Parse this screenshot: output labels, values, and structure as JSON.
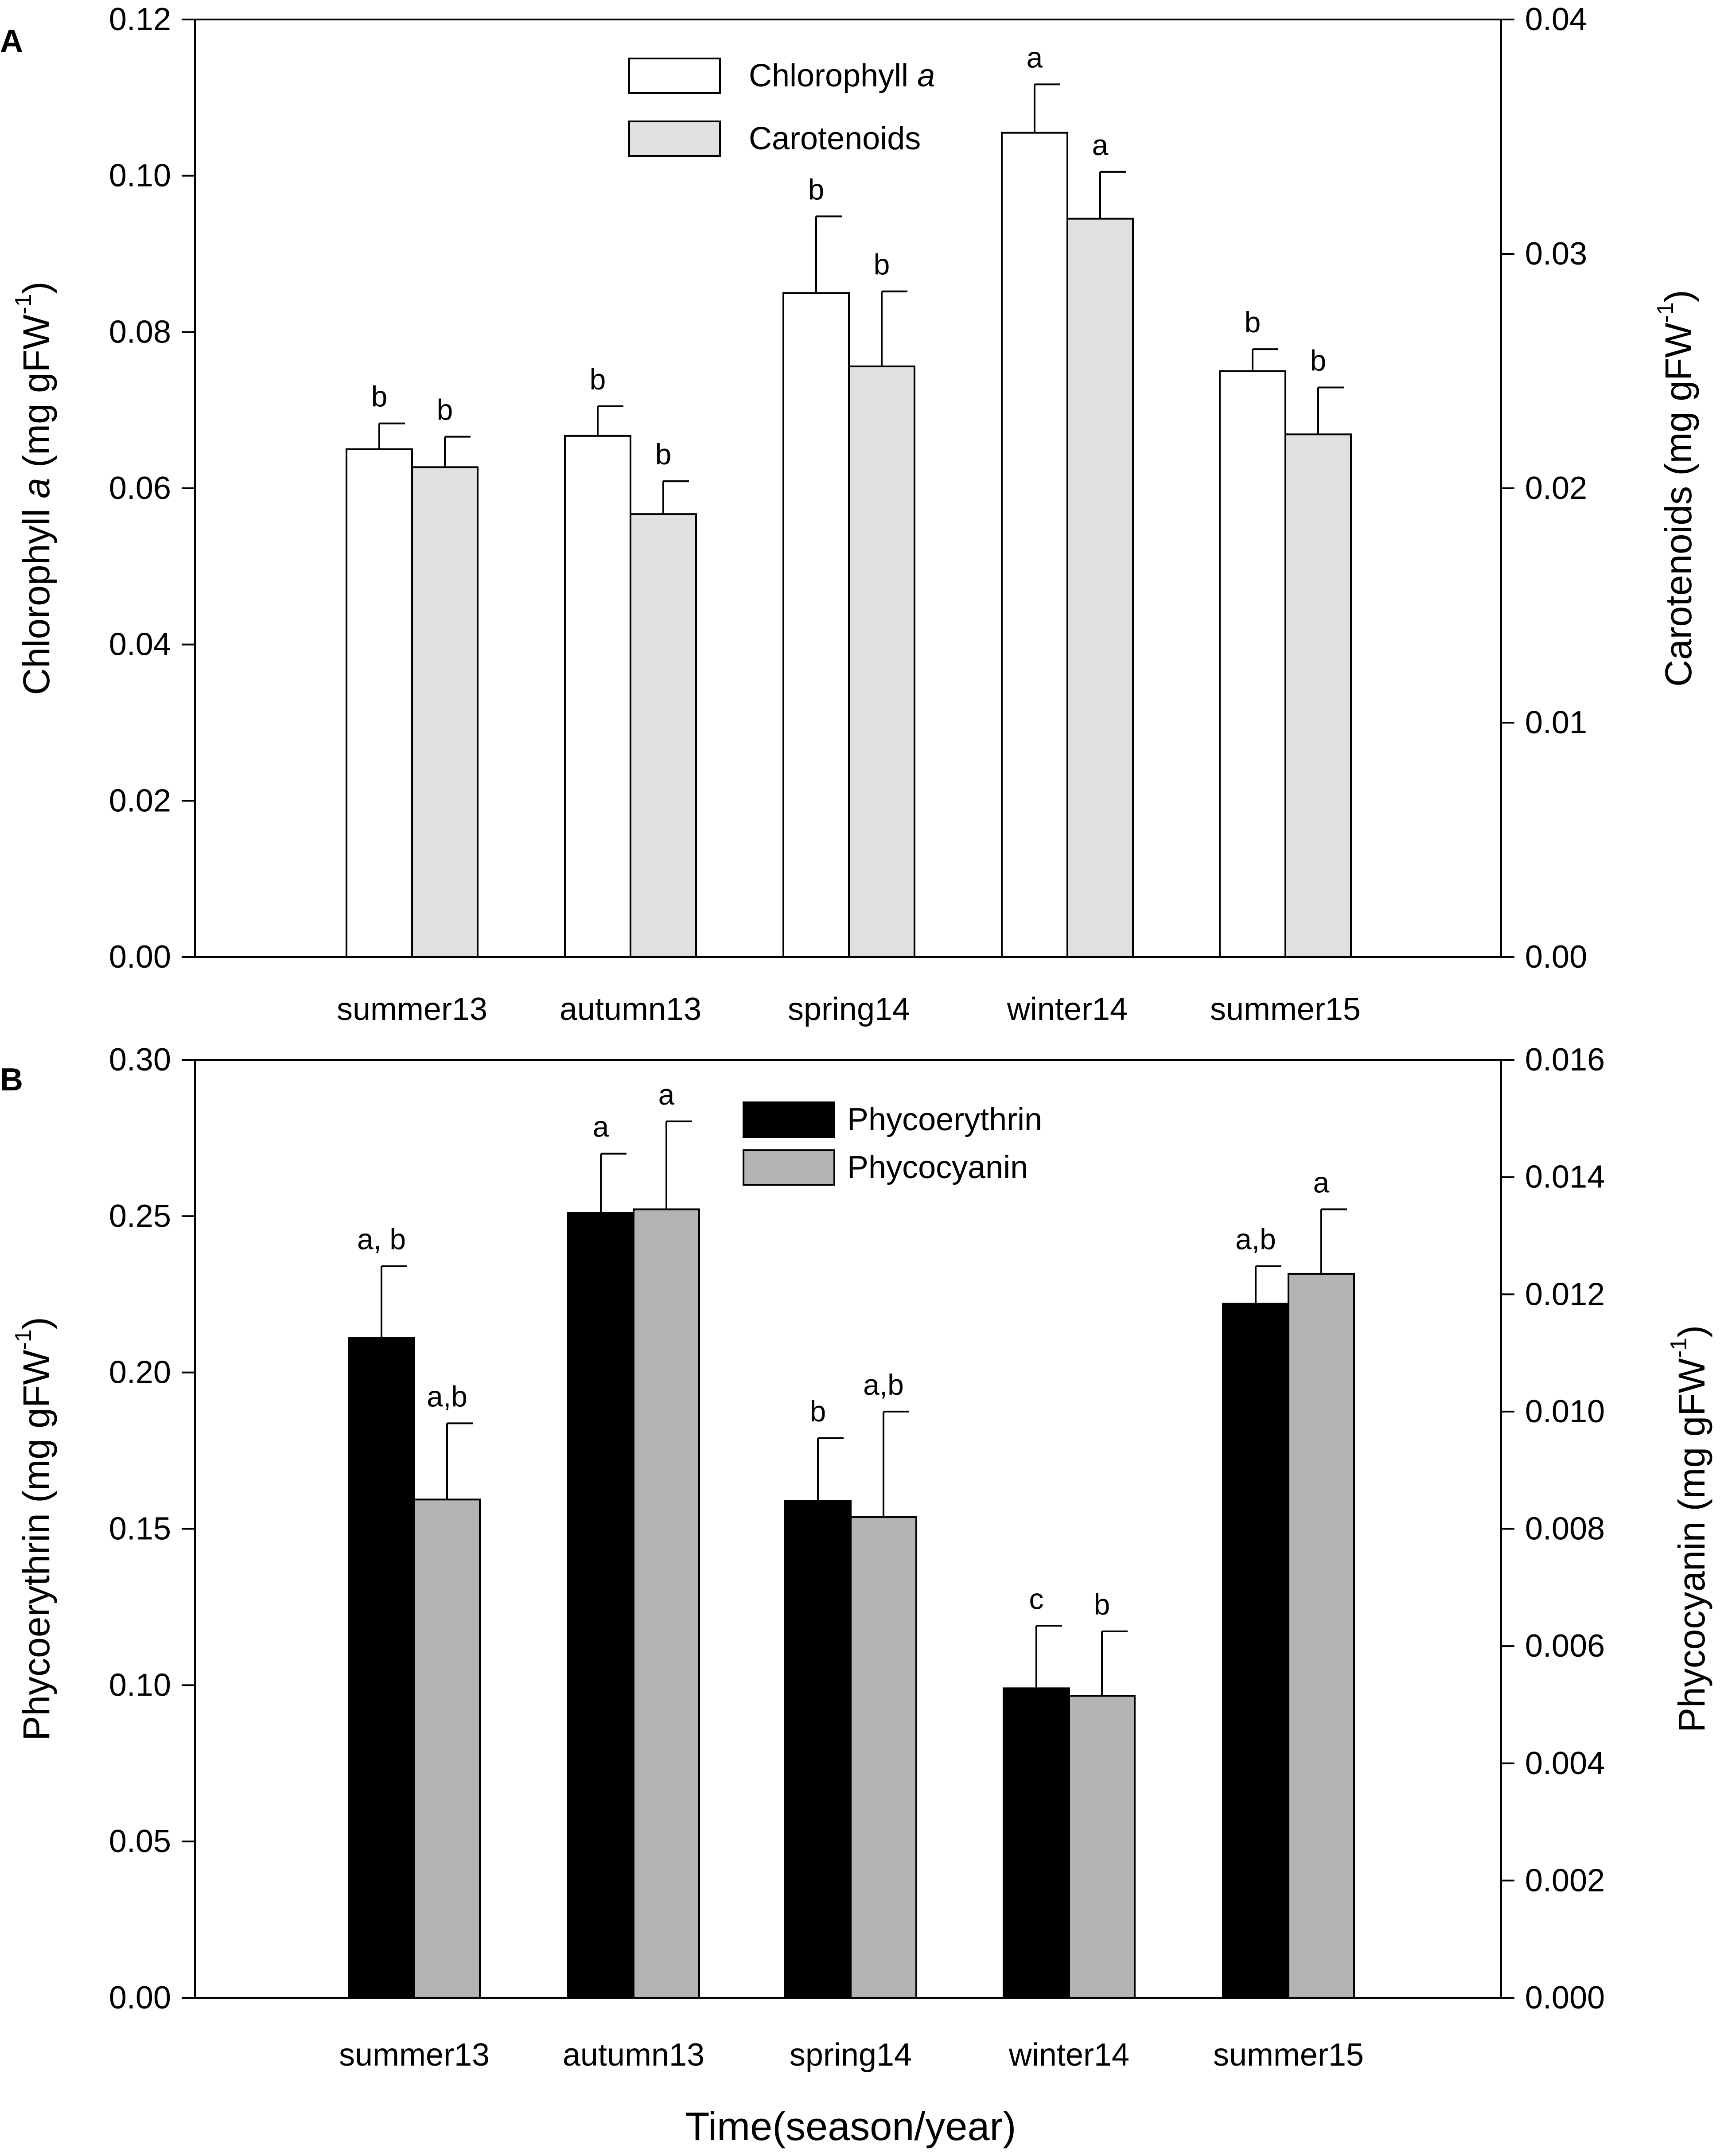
{
  "figure": {
    "shared_xlabel": "Time(season/year)"
  },
  "chart_data": [
    {
      "type": "bar",
      "panel": "A",
      "categories": [
        "summer13",
        "autumn13",
        "spring14",
        "winter14",
        "summer15"
      ],
      "legend_position": "top-center",
      "left_axis": {
        "label": "Chlorophyll a (mg gFW⁻¹)",
        "label_parts": {
          "pre": "Chlorophyll ",
          "italic": "a",
          "post": " (mg gFW",
          "sup": "-1",
          "close": ")"
        },
        "ylim": [
          0,
          0.12
        ],
        "ticks": [
          "0.00",
          "0.02",
          "0.04",
          "0.06",
          "0.08",
          "0.10",
          "0.12"
        ]
      },
      "right_axis": {
        "label": "Carotenoids (mg gFW⁻¹)",
        "label_parts": {
          "pre": "Carotenoids",
          "post": " (mg gFW",
          "sup": "-1",
          "close": ")"
        },
        "ylim": [
          0,
          0.04
        ],
        "ticks": [
          "0.00",
          "0.01",
          "0.02",
          "0.03",
          "0.04"
        ]
      },
      "series": [
        {
          "name": "Chlorophyll a",
          "legend_parts": {
            "pre": "Chlorophyll ",
            "italic": "a"
          },
          "axis": "left",
          "color": "#ffffff",
          "values": [
            0.065,
            0.0667,
            0.085,
            0.1055,
            0.075
          ],
          "errors": [
            0.0033,
            0.0038,
            0.0098,
            0.0062,
            0.0028
          ],
          "letters": [
            "b",
            "b",
            "b",
            "a",
            "b"
          ]
        },
        {
          "name": "Carotenoids",
          "legend_parts": {
            "pre": "Carotenoids"
          },
          "axis": "right",
          "color": "#e0e0e0",
          "values": [
            0.0209,
            0.0189,
            0.0252,
            0.0315,
            0.0223
          ],
          "errors": [
            0.0013,
            0.0014,
            0.0032,
            0.002,
            0.002
          ],
          "letters": [
            "b",
            "b",
            "b",
            "a",
            "b"
          ]
        }
      ]
    },
    {
      "type": "bar",
      "panel": "B",
      "categories": [
        "summer13",
        "autumn13",
        "spring14",
        "winter14",
        "summer15"
      ],
      "legend_position": "top-center",
      "left_axis": {
        "label": "Phycoerythrin (mg gFW⁻¹)",
        "label_parts": {
          "pre": "Phycoerythrin",
          "post": " (mg gFW",
          "sup": "-1",
          "close": ")"
        },
        "ylim": [
          0,
          0.3
        ],
        "ticks": [
          "0.00",
          "0.05",
          "0.10",
          "0.15",
          "0.20",
          "0.25",
          "0.30"
        ]
      },
      "right_axis": {
        "label": "Phycocyanin (mg gFW⁻¹)",
        "label_parts": {
          "pre": "Phycocyanin",
          "post": " (mg gFW",
          "sup": "-1",
          "close": ")"
        },
        "ylim": [
          0,
          0.016
        ],
        "ticks": [
          "0.000",
          "0.002",
          "0.004",
          "0.006",
          "0.008",
          "0.010",
          "0.012",
          "0.014",
          "0.016"
        ]
      },
      "series": [
        {
          "name": "Phycoerythrin",
          "legend_parts": {
            "pre": "Phycoerythrin"
          },
          "axis": "left",
          "color": "#000000",
          "values": [
            0.211,
            0.251,
            0.159,
            0.099,
            0.222
          ],
          "errors": [
            0.023,
            0.019,
            0.02,
            0.02,
            0.012
          ],
          "letters": [
            "a, b",
            "a",
            "b",
            "c",
            "a,b"
          ]
        },
        {
          "name": "Phycocyanin",
          "legend_parts": {
            "pre": "Phycocyanin"
          },
          "axis": "right",
          "color": "#b4b4b4",
          "values": [
            0.0085,
            0.01345,
            0.0082,
            0.00515,
            0.01235
          ],
          "errors": [
            0.0013,
            0.0015,
            0.0018,
            0.0011,
            0.0011
          ],
          "letters": [
            "a,b",
            "a",
            "a,b",
            "b",
            "a"
          ]
        }
      ]
    }
  ]
}
